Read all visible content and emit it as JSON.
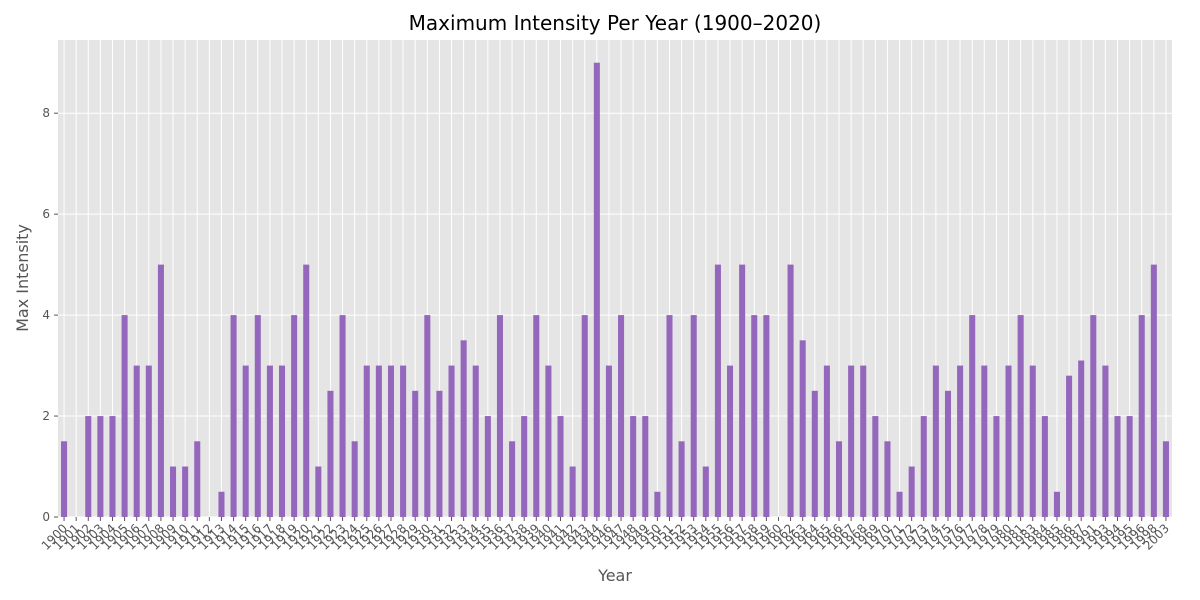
{
  "chart_data": {
    "type": "bar",
    "title": "Maximum Intensity Per Year (1900–2020)",
    "x_label": "Year",
    "y_label": "Max Intensity",
    "categories": [
      "1900",
      "1901",
      "1902",
      "1903",
      "1904",
      "1905",
      "1906",
      "1907",
      "1908",
      "1909",
      "1910",
      "1911",
      "1912",
      "1913",
      "1914",
      "1915",
      "1916",
      "1917",
      "1918",
      "1919",
      "1920",
      "1921",
      "1922",
      "1923",
      "1924",
      "1925",
      "1926",
      "1927",
      "1928",
      "1929",
      "1930",
      "1931",
      "1932",
      "1933",
      "1934",
      "1935",
      "1936",
      "1937",
      "1938",
      "1939",
      "1940",
      "1941",
      "1942",
      "1943",
      "1944",
      "1946",
      "1947",
      "1948",
      "1949",
      "1950",
      "1951",
      "1952",
      "1953",
      "1954",
      "1955",
      "1956",
      "1957",
      "1958",
      "1959",
      "1960",
      "1962",
      "1963",
      "1964",
      "1965",
      "1966",
      "1967",
      "1968",
      "1969",
      "1970",
      "1971",
      "1972",
      "1973",
      "1974",
      "1975",
      "1976",
      "1977",
      "1978",
      "1979",
      "1980",
      "1981",
      "1983",
      "1984",
      "1985",
      "1986",
      "1987",
      "1991",
      "1993",
      "1994",
      "1995",
      "1996",
      "1998",
      "2003"
    ],
    "values": [
      1.5,
      0,
      2,
      2,
      2,
      4,
      3,
      3,
      5,
      1,
      1,
      1.5,
      0,
      0.5,
      4,
      3,
      4,
      3,
      3,
      4,
      5,
      1,
      2.5,
      4,
      1.5,
      3,
      3,
      3,
      3,
      2.5,
      4,
      2.5,
      3,
      3.5,
      3,
      2,
      4,
      1.5,
      2,
      4,
      3,
      2,
      1,
      4,
      9,
      3,
      4,
      2,
      2,
      0.5,
      4,
      1.5,
      4,
      1,
      5,
      3,
      5,
      4,
      4,
      0,
      5,
      3.5,
      2.5,
      3,
      1.5,
      3,
      3,
      2,
      1.5,
      0.5,
      1,
      2,
      3,
      2.5,
      3,
      4,
      3,
      2,
      3,
      4,
      3,
      2,
      0.5,
      2.8,
      3.1,
      4,
      3,
      2,
      2,
      4,
      5,
      1.5
    ],
    "color": "#9467bd",
    "ylim": [
      0,
      9.45
    ],
    "yticks": [
      0,
      2,
      4,
      6,
      8
    ],
    "grid": true
  }
}
